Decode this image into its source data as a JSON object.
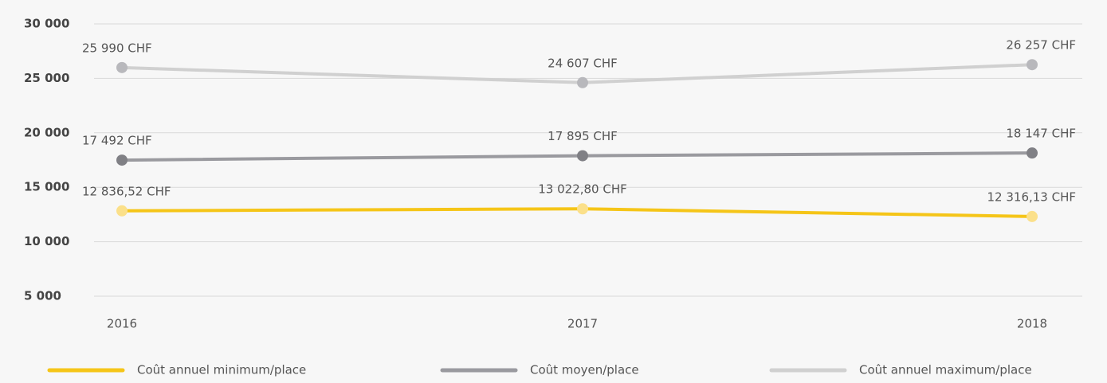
{
  "chart_data": {
    "type": "line",
    "categories": [
      "2016",
      "2017",
      "2018"
    ],
    "series": [
      {
        "name": "Coût annuel minimum/place",
        "color": "#f5c518",
        "marker_color": "#fbe08a",
        "values": [
          12836.52,
          13022.8,
          12316.13
        ],
        "value_labels": [
          "12 836,52 CHF",
          "13 022,80 CHF",
          "12 316,13 CHF"
        ]
      },
      {
        "name": "Coût moyen/place",
        "color": "#9a9a9f",
        "marker_color": "#808085",
        "values": [
          17492,
          17895,
          18147
        ],
        "value_labels": [
          "17 492 CHF",
          "17 895 CHF",
          "18 147 CHF"
        ]
      },
      {
        "name": "Coût annuel maximum/place",
        "color": "#d0d0d0",
        "marker_color": "#b8b8bc",
        "values": [
          25990,
          24607,
          26257
        ],
        "value_labels": [
          "25 990 CHF",
          "24 607 CHF",
          "26 257 CHF"
        ]
      }
    ],
    "ylim": [
      5000,
      30000
    ],
    "yticks": [
      {
        "value": 5000,
        "label": "5 000"
      },
      {
        "value": 10000,
        "label": "10 000"
      },
      {
        "value": 15000,
        "label": "15 000"
      },
      {
        "value": 20000,
        "label": "20 000"
      },
      {
        "value": 25000,
        "label": "25 000"
      },
      {
        "value": 30000,
        "label": "30 000"
      }
    ],
    "grid": true,
    "legend": "bottom"
  }
}
